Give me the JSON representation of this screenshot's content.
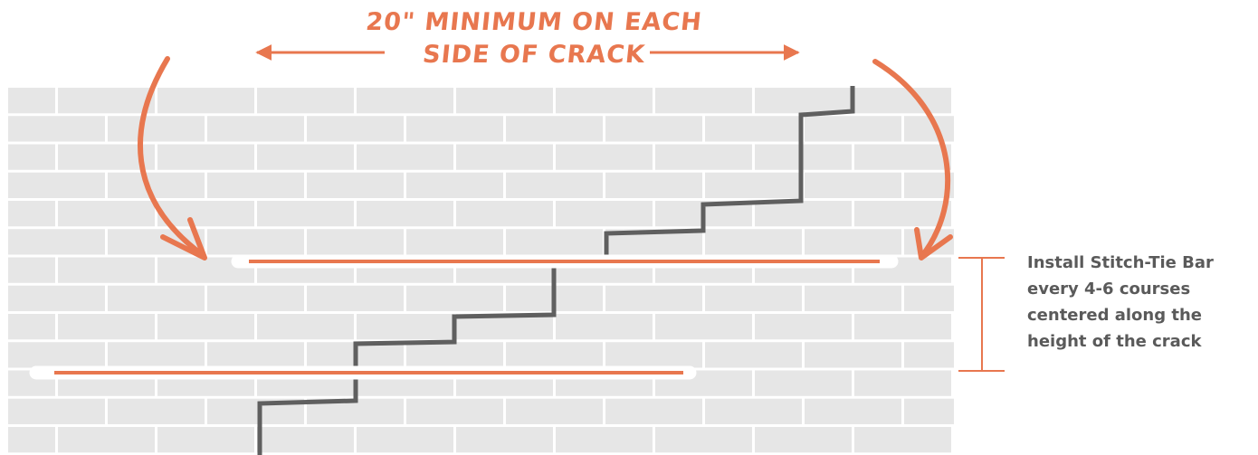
{
  "header": {
    "line1": "20\" MINIMUM ON EACH",
    "line2": "SIDE OF CRACK"
  },
  "note": {
    "lines": [
      "Install Stitch-Tie Bar",
      "every 4-6 courses",
      "centered along the",
      "height of the crack"
    ]
  },
  "colors": {
    "accent": "#e8774f",
    "brick": "#e6e6e6",
    "mortar": "#ffffff",
    "crack": "#5f5f5f",
    "note_text": "#5a5a5a"
  }
}
